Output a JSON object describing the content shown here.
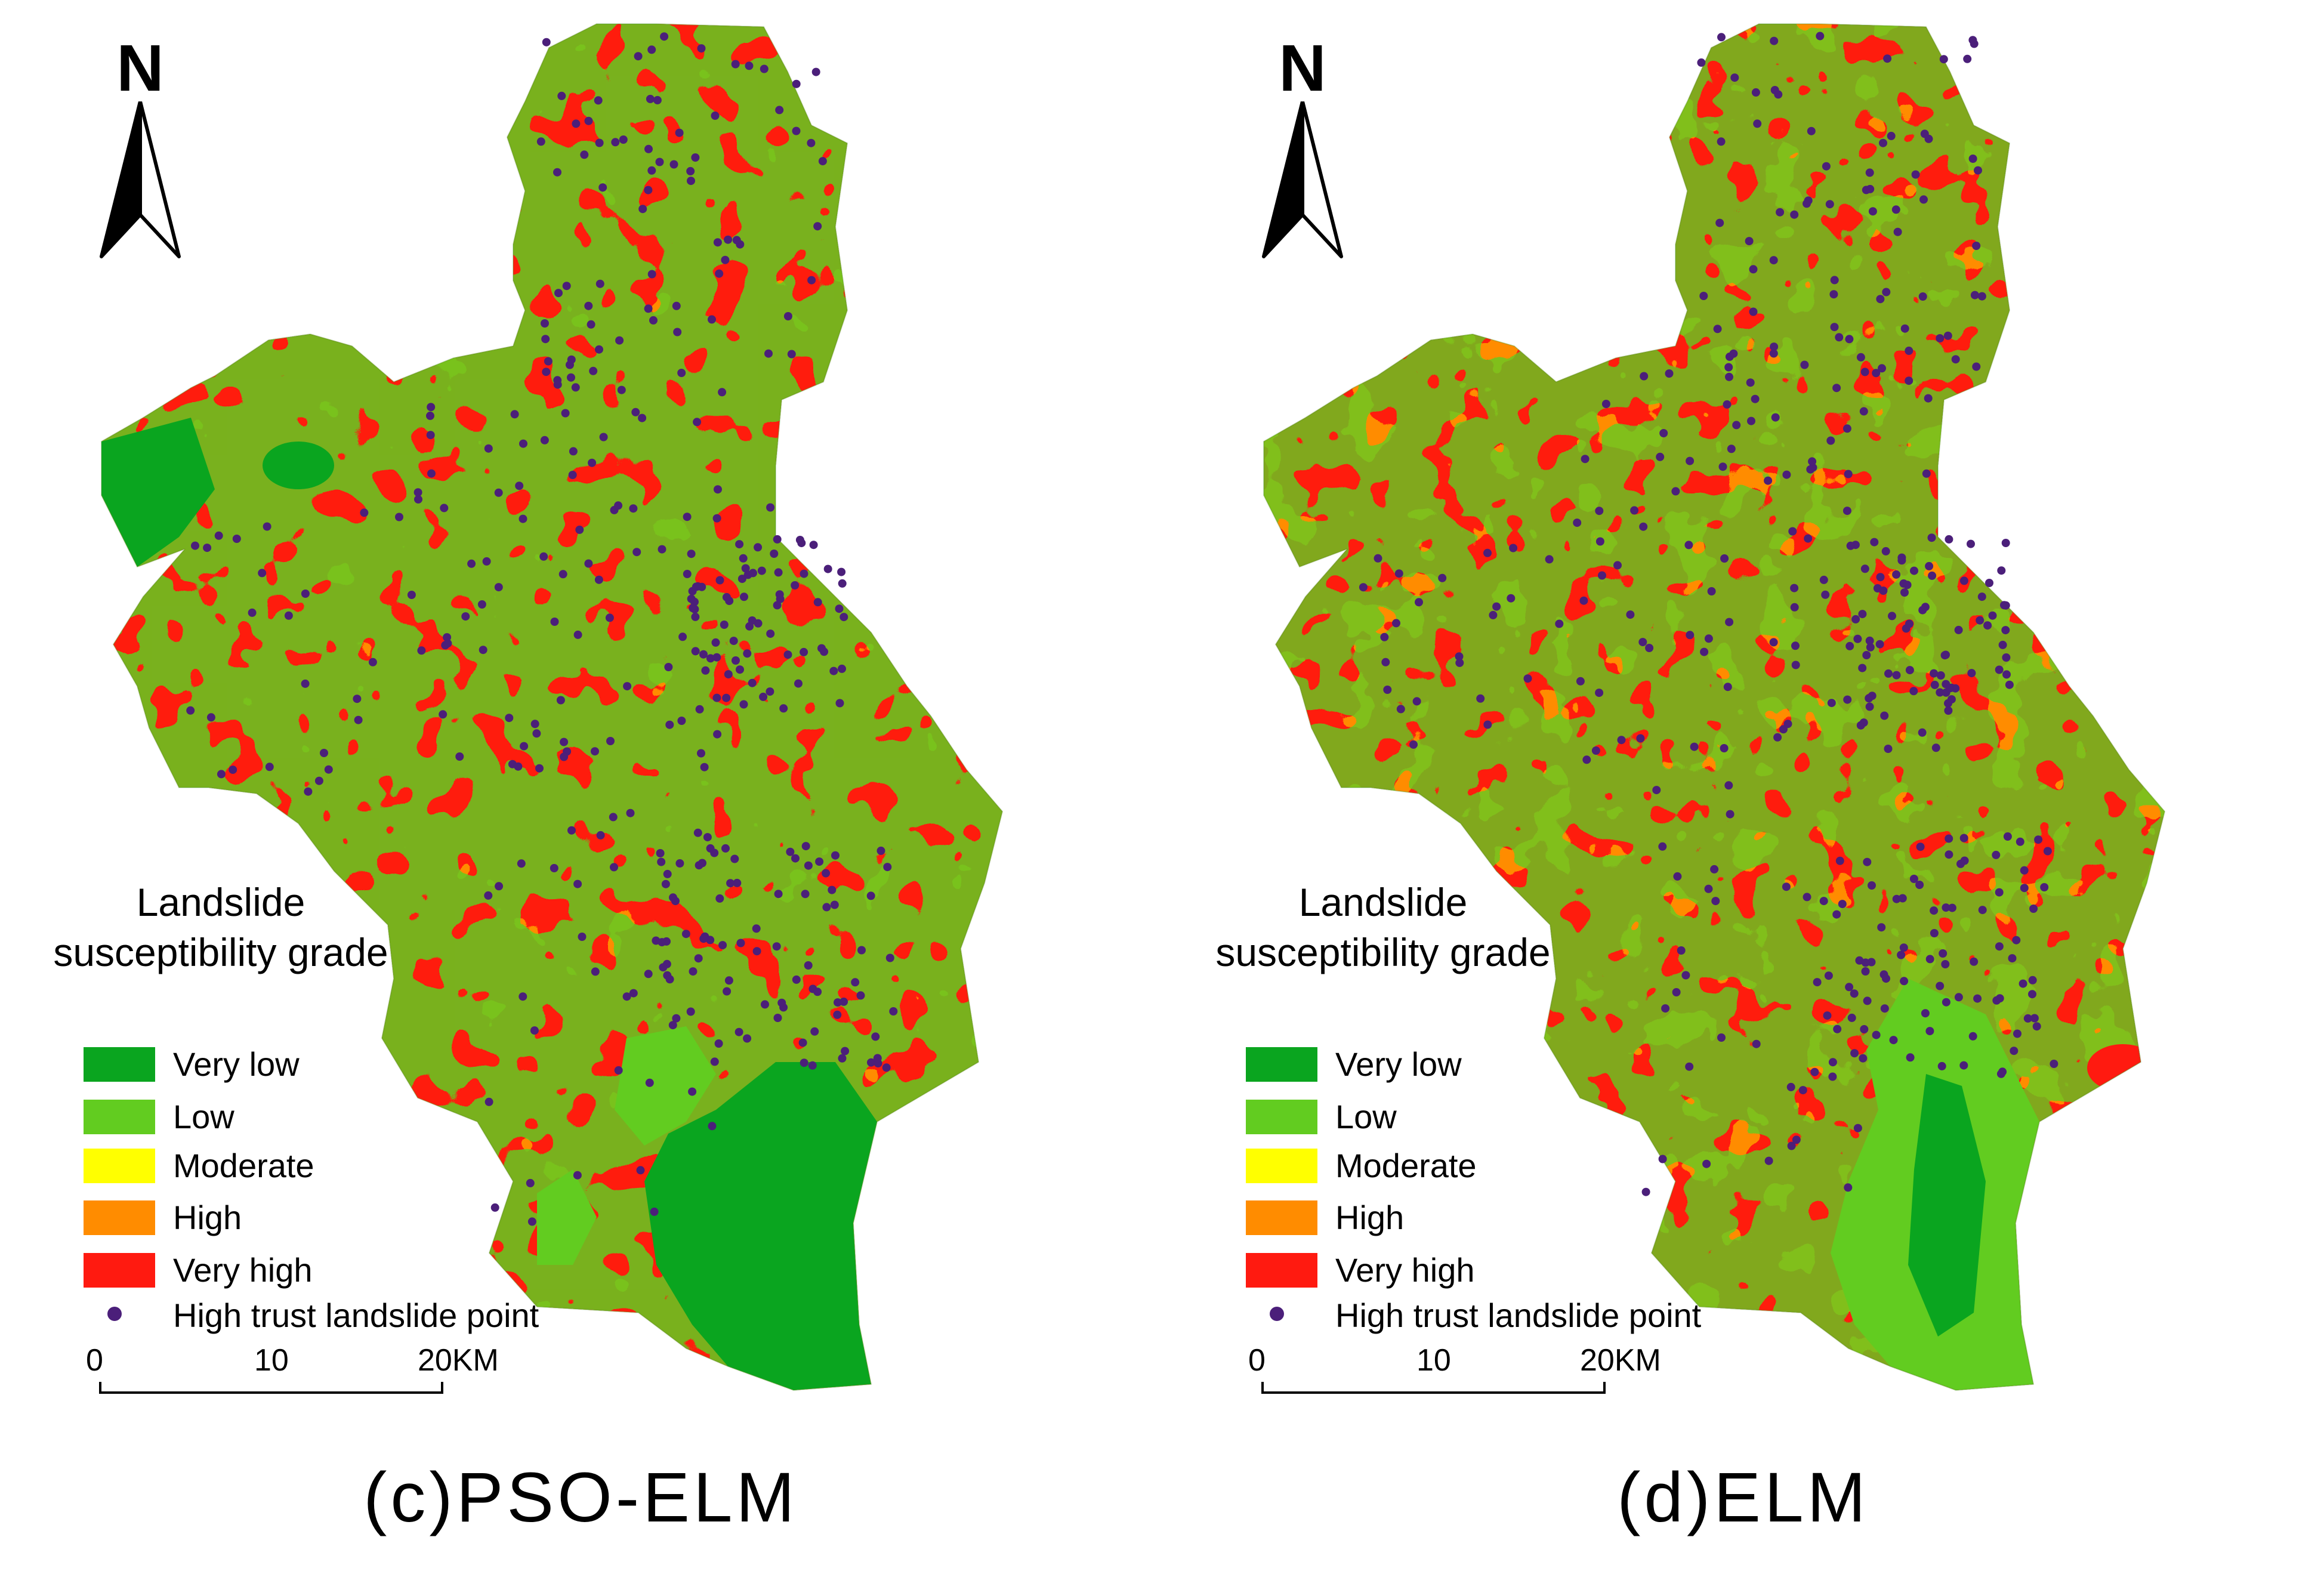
{
  "north_letter": "N",
  "legend": {
    "title_line1": "Landslide",
    "title_line2": "susceptibility grade",
    "classes": [
      {
        "label": "Very low",
        "color": "#0aa51f"
      },
      {
        "label": "Low",
        "color": "#62cc20"
      },
      {
        "label": "Moderate",
        "color": "#ffff00"
      },
      {
        "label": "High",
        "color": "#ff8c00"
      },
      {
        "label": "Very high",
        "color": "#ff1a10"
      }
    ],
    "point_label": "High trust landslide point",
    "point_color": "#4b1f7a"
  },
  "scale_bar": {
    "ticks": [
      "0",
      "10",
      "20KM"
    ]
  },
  "panels": [
    {
      "caption": "(c)PSO-ELM"
    },
    {
      "caption": "(d)ELM"
    }
  ]
}
